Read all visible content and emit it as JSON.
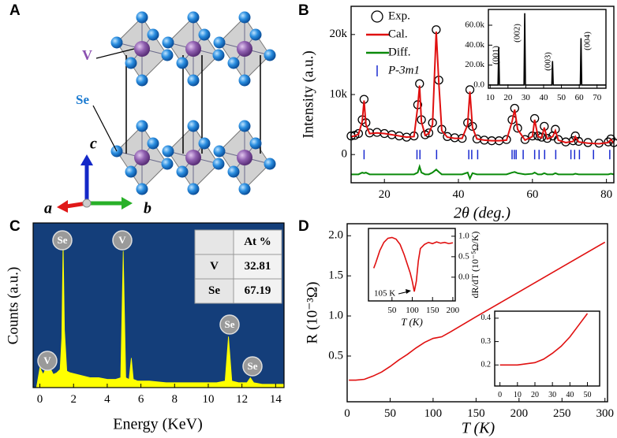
{
  "panel_labels": [
    "A",
    "B",
    "C",
    "D"
  ],
  "structure": {
    "labels": [
      "V",
      "Se"
    ],
    "axes": [
      "c",
      "a",
      "b"
    ]
  },
  "chart_data": [
    {
      "type": "line",
      "xlabel": "2θ (deg.)",
      "ylabel": "Intensity (a.u.)",
      "xlim": [
        11,
        82
      ],
      "ylim": [
        -4700,
        24700
      ],
      "xticks": [
        20,
        40,
        60,
        80
      ],
      "yticks": [
        0,
        {
          "value": 10000,
          "label": "10k"
        },
        {
          "value": 20000,
          "label": "20k"
        }
      ],
      "legend": true,
      "x": [
        11,
        12,
        13,
        14,
        14.5,
        15,
        16,
        18,
        20,
        22,
        24,
        26,
        28,
        29,
        29.5,
        30,
        31,
        32,
        33,
        34,
        34.7,
        35.5,
        37,
        39,
        41,
        42.5,
        43.1,
        43.8,
        45,
        47,
        49,
        51,
        53,
        54.5,
        55.2,
        56,
        58,
        60,
        60.6,
        61.5,
        62.5,
        63.2,
        64,
        65.5,
        66.2,
        67,
        69,
        71,
        71.6,
        72.5,
        75,
        78,
        80.5,
        81.2,
        82
      ],
      "series": [
        {
          "name": "Exp.",
          "color": "#000000",
          "mark": "circle",
          "values": [
            3100,
            3200,
            3500,
            5800,
            9200,
            5300,
            3600,
            3700,
            3500,
            3300,
            3100,
            2900,
            3100,
            8300,
            11800,
            5800,
            3300,
            3600,
            5300,
            20800,
            12400,
            4200,
            3000,
            2800,
            2700,
            5300,
            10800,
            4700,
            2600,
            2400,
            2300,
            2300,
            2500,
            5800,
            7700,
            4400,
            2500,
            3100,
            6000,
            3100,
            2900,
            4700,
            2700,
            3100,
            4200,
            2500,
            2100,
            2300,
            3100,
            2200,
            2000,
            1900,
            2100,
            2600,
            2000
          ]
        },
        {
          "name": "Cal.",
          "color": "#e01010",
          "mark": "line",
          "values": [
            3000,
            3100,
            3400,
            5500,
            9000,
            5000,
            3500,
            3600,
            3500,
            3300,
            3100,
            2900,
            3000,
            8000,
            11500,
            5500,
            3200,
            3500,
            5000,
            20500,
            12000,
            4000,
            2900,
            2700,
            2700,
            5000,
            10500,
            4500,
            2600,
            2400,
            2300,
            2300,
            2400,
            5500,
            7500,
            4200,
            2400,
            3000,
            5800,
            3000,
            2800,
            4500,
            2600,
            3000,
            4000,
            2400,
            2000,
            2200,
            3000,
            2100,
            1900,
            1800,
            2000,
            2500,
            1900
          ]
        },
        {
          "name": "Diff.",
          "color": "#0a8a0a",
          "mark": "line",
          "values": [
            -3300,
            -3300,
            -3300,
            -3000,
            -3100,
            -3000,
            -3300,
            -3300,
            -3300,
            -3300,
            -3300,
            -3300,
            -3300,
            -3000,
            -2000,
            -3000,
            -3300,
            -3300,
            -3000,
            -2500,
            -2900,
            -3300,
            -3300,
            -3300,
            -3300,
            -3000,
            -4000,
            -3100,
            -3300,
            -3300,
            -3300,
            -3300,
            -3300,
            -3000,
            -2900,
            -3100,
            -3300,
            -3200,
            -3000,
            -3300,
            -3300,
            -3100,
            -3300,
            -3300,
            -3100,
            -3300,
            -3300,
            -3300,
            -3200,
            -3300,
            -3300,
            -3300,
            -3300,
            -3200,
            -3300
          ]
        },
        {
          "name": "P-3m1",
          "color": "#1a2ad0",
          "mark": "tick",
          "x": [
            14.5,
            28.8,
            29.6,
            34.1,
            42.8,
            43.6,
            45.2,
            54.5,
            55.1,
            55.6,
            57.5,
            60.6,
            61.8,
            63.3,
            66.3,
            70.4,
            71.4,
            72.7,
            76.5,
            80.9
          ],
          "values": [
            0,
            0,
            0,
            0,
            0,
            0,
            0,
            0,
            0,
            0,
            0,
            0,
            0,
            0,
            0,
            0,
            0,
            0,
            0,
            0
          ]
        }
      ]
    },
    {
      "type": "line",
      "xlim": [
        9,
        75
      ],
      "ylim": [
        -3200,
        75800
      ],
      "xticks": [
        10,
        20,
        30,
        40,
        50,
        60,
        70
      ],
      "yticks": [
        {
          "value": 0,
          "label": "0.0"
        },
        {
          "value": 20000,
          "label": "20.0k"
        },
        {
          "value": 40000,
          "label": "40.0k"
        },
        {
          "value": 60000,
          "label": "60.0k"
        }
      ],
      "peak_labels": [
        "(001)",
        "(002)",
        "(003)",
        "(004)"
      ],
      "x": [
        9,
        14.4,
        14.8,
        15.2,
        29,
        29.4,
        29.8,
        44.6,
        45,
        45.4,
        60.6,
        61,
        61.4,
        75
      ],
      "series": [
        {
          "color": "#000000",
          "mark": "line",
          "values": [
            0,
            0,
            38000,
            0,
            0,
            72000,
            0,
            0,
            24000,
            0,
            0,
            47000,
            0,
            0
          ]
        }
      ]
    },
    {
      "type": "area",
      "xlabel": "Energy (KeV)",
      "ylabel": "Counts (a.u.)",
      "xlim": [
        -0.4,
        14.5
      ],
      "ylim": [
        0,
        100
      ],
      "xticks": [
        0,
        2,
        4,
        6,
        8,
        10,
        12,
        14
      ],
      "peak_labels": [
        "V",
        "Se",
        "V",
        "Se",
        "Se"
      ],
      "table": {
        "header": "At %",
        "rows": [
          [
            "V",
            32.81
          ],
          [
            "Se",
            67.19
          ]
        ]
      },
      "x": [
        -0.2,
        0,
        0.2,
        0.4,
        0.5,
        0.6,
        0.8,
        1.0,
        1.2,
        1.3,
        1.38,
        1.46,
        1.6,
        1.8,
        2.2,
        2.6,
        3,
        3.5,
        4,
        4.5,
        4.8,
        4.95,
        5.1,
        5.3,
        5.43,
        5.55,
        5.8,
        6.5,
        7.5,
        8.5,
        9.5,
        10.5,
        11,
        11.2,
        11.4,
        11.8,
        12.3,
        12.5,
        12.7,
        13.2,
        14,
        14.5
      ],
      "series": [
        {
          "color": "#ffff00",
          "mark": "area",
          "values": [
            0,
            12,
            8,
            13,
            15,
            12,
            8,
            9,
            11,
            30,
            89,
            35,
            10,
            9,
            8,
            7,
            6,
            6,
            5,
            5,
            6,
            83,
            6,
            5,
            18,
            5,
            4,
            4,
            3,
            3,
            3,
            3,
            4,
            31,
            4,
            3,
            3,
            6,
            3,
            2,
            2,
            2
          ]
        }
      ]
    },
    {
      "type": "line",
      "xlabel": "T (K)",
      "ylabel": "R (10⁻³Ω)",
      "xlim": [
        0,
        303
      ],
      "ylim": [
        -0.07,
        2.15
      ],
      "xticks": [
        0,
        50,
        100,
        150,
        200,
        250,
        300
      ],
      "yticks": [
        0.5,
        {
          "value": 1.0,
          "label": "1.0"
        },
        1.5,
        {
          "value": 2.0,
          "label": "2.0"
        }
      ],
      "x": [
        2,
        10,
        20,
        30,
        40,
        50,
        60,
        70,
        80,
        90,
        100,
        105,
        110,
        120,
        150,
        200,
        250,
        300
      ],
      "series": [
        {
          "color": "#e01010",
          "mark": "line",
          "values": [
            0.2,
            0.2,
            0.21,
            0.25,
            0.3,
            0.37,
            0.45,
            0.52,
            0.6,
            0.67,
            0.72,
            0.73,
            0.74,
            0.8,
            0.99,
            1.3,
            1.61,
            1.92
          ]
        }
      ]
    },
    {
      "type": "line",
      "xlabel": "T (K)",
      "ylabel": "dR/dT (10⁻⁵Ω/K)",
      "annotation": "105 K",
      "xlim": [
        -8,
        206
      ],
      "ylim": [
        -0.58,
        1.19
      ],
      "xticks": [
        50,
        100,
        150,
        200
      ],
      "yticks": [
        {
          "value": 0,
          "label": "0.0"
        },
        0.5,
        {
          "value": 1.0,
          "label": "1.0"
        }
      ],
      "x": [
        5,
        10,
        20,
        30,
        40,
        50,
        60,
        70,
        80,
        90,
        95,
        100,
        105,
        110,
        115,
        120,
        130,
        140,
        150,
        160,
        170,
        180,
        190,
        200
      ],
      "series": [
        {
          "color": "#e01010",
          "mark": "line",
          "values": [
            0.22,
            0.35,
            0.65,
            0.85,
            0.95,
            0.97,
            0.93,
            0.8,
            0.55,
            0.25,
            0.1,
            -0.1,
            -0.35,
            -0.1,
            0.4,
            0.7,
            0.8,
            0.85,
            0.82,
            0.86,
            0.83,
            0.85,
            0.82,
            0.84
          ]
        }
      ]
    },
    {
      "type": "line",
      "xlim": [
        -3,
        57
      ],
      "ylim": [
        0.11,
        0.43
      ],
      "xticks": [
        0,
        10,
        20,
        30,
        40,
        50
      ],
      "yticks": [
        0.2,
        0.3,
        0.4
      ],
      "x": [
        0,
        5,
        10,
        15,
        20,
        25,
        30,
        35,
        40,
        45,
        50
      ],
      "series": [
        {
          "color": "#e01010",
          "mark": "line",
          "values": [
            0.2,
            0.2,
            0.2,
            0.205,
            0.21,
            0.225,
            0.25,
            0.28,
            0.32,
            0.37,
            0.42
          ]
        }
      ]
    }
  ]
}
